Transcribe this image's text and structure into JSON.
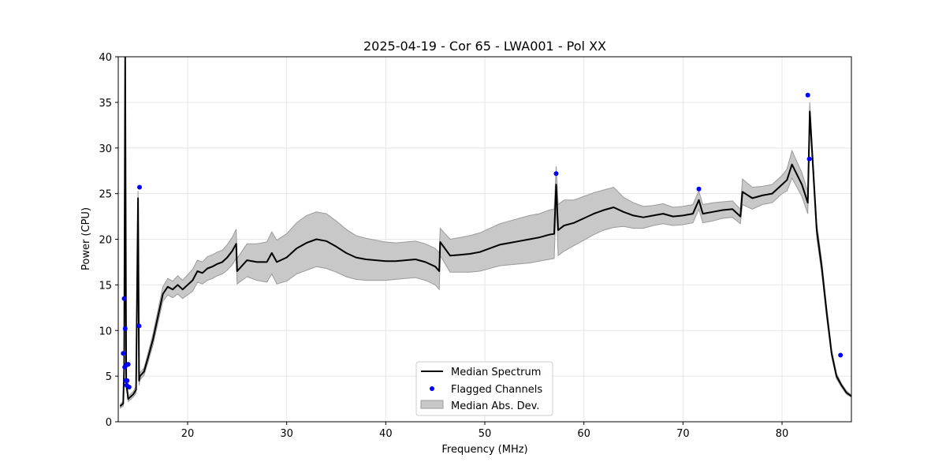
{
  "chart_data": {
    "type": "line",
    "title": "2025-04-19 - Cor 65 - LWA001 - Pol XX",
    "xlabel": "Frequency (MHz)",
    "ylabel": "Power (CPU)",
    "xlim": [
      13.0,
      87.0
    ],
    "ylim": [
      0,
      40
    ],
    "xticks": [
      20,
      30,
      40,
      50,
      60,
      70,
      80
    ],
    "yticks": [
      0,
      5,
      10,
      15,
      20,
      25,
      30,
      35,
      40
    ],
    "grid": true,
    "legend_position": "bottom-center",
    "colors": {
      "median": "#000000",
      "flagged": "#0000ff",
      "mad_fill": "#c8c8c8",
      "mad_edge": "#9a9a9a"
    },
    "series": [
      {
        "name": "Median Spectrum",
        "kind": "line",
        "x": [
          13.2,
          13.5,
          13.6,
          13.7,
          13.8,
          13.9,
          14.0,
          14.5,
          14.8,
          15.0,
          15.1,
          15.2,
          15.6,
          16.0,
          16.5,
          17.0,
          17.5,
          18.0,
          18.5,
          19.0,
          19.5,
          20.0,
          20.5,
          21.0,
          21.5,
          22.0,
          22.5,
          23.0,
          23.5,
          24.0,
          24.5,
          24.9,
          25.0,
          26.0,
          27.0,
          28.0,
          28.5,
          29.0,
          30.0,
          31.0,
          32.0,
          33.0,
          34.0,
          35.0,
          36.0,
          37.0,
          38.0,
          39.0,
          40.0,
          41.0,
          42.0,
          43.0,
          44.0,
          45.0,
          45.4,
          45.5,
          46.5,
          47.5,
          48.5,
          49.5,
          50.5,
          51.5,
          52.5,
          53.5,
          54.5,
          55.5,
          56.5,
          57.0,
          57.2,
          57.4,
          58.0,
          59.0,
          60.0,
          61.0,
          62.0,
          63.0,
          64.0,
          65.0,
          66.0,
          67.0,
          68.0,
          69.0,
          70.0,
          71.0,
          71.6,
          72.0,
          73.0,
          74.0,
          75.0,
          75.8,
          76.0,
          77.0,
          78.0,
          79.0,
          80.0,
          80.5,
          81.0,
          82.0,
          82.6,
          82.8,
          83.5,
          84.0,
          84.5,
          85.0,
          85.5,
          86.0,
          86.5,
          87.0
        ],
        "y": [
          1.7,
          2.0,
          6.0,
          40.0,
          4.0,
          3.5,
          2.5,
          3.0,
          3.5,
          24.5,
          4.5,
          5.0,
          5.5,
          7.0,
          9.0,
          11.5,
          14.0,
          14.8,
          14.5,
          15.0,
          14.5,
          15.0,
          15.5,
          16.5,
          16.3,
          16.8,
          17.0,
          17.3,
          17.5,
          18.0,
          18.7,
          19.5,
          16.5,
          17.7,
          17.5,
          17.5,
          18.5,
          17.5,
          18.0,
          19.0,
          19.6,
          20.0,
          19.8,
          19.2,
          18.5,
          18.0,
          17.8,
          17.7,
          17.6,
          17.6,
          17.7,
          17.8,
          17.5,
          17.0,
          16.5,
          19.7,
          18.2,
          18.3,
          18.4,
          18.6,
          19.0,
          19.4,
          19.6,
          19.8,
          20.0,
          20.2,
          20.5,
          20.6,
          26.0,
          21.0,
          21.5,
          21.8,
          22.3,
          22.8,
          23.2,
          23.5,
          23.0,
          22.6,
          22.4,
          22.6,
          22.8,
          22.5,
          22.6,
          22.8,
          24.3,
          22.8,
          23.0,
          23.2,
          23.3,
          22.5,
          25.2,
          24.5,
          24.8,
          25.0,
          26.0,
          26.5,
          28.2,
          26.0,
          24.0,
          34.0,
          21.0,
          17.0,
          12.0,
          7.5,
          5.0,
          4.0,
          3.2,
          2.8
        ],
        "mad": [
          0.2,
          0.3,
          0.8,
          1.0,
          0.5,
          0.4,
          0.3,
          0.3,
          0.4,
          0.8,
          0.5,
          0.4,
          0.4,
          0.5,
          0.6,
          0.7,
          0.8,
          0.9,
          0.9,
          1.0,
          1.0,
          1.1,
          1.2,
          1.2,
          1.2,
          1.3,
          1.3,
          1.3,
          1.3,
          1.4,
          1.5,
          1.6,
          1.4,
          1.8,
          2.0,
          2.2,
          2.3,
          2.4,
          2.6,
          2.8,
          3.0,
          3.0,
          3.0,
          2.8,
          2.6,
          2.4,
          2.3,
          2.2,
          2.1,
          2.0,
          2.0,
          2.0,
          2.0,
          2.0,
          2.0,
          1.5,
          1.8,
          1.9,
          2.0,
          2.1,
          2.2,
          2.3,
          2.4,
          2.5,
          2.6,
          2.6,
          2.7,
          2.7,
          2.0,
          2.8,
          2.8,
          2.5,
          2.4,
          2.3,
          2.2,
          2.2,
          1.6,
          1.4,
          1.2,
          1.1,
          1.1,
          1.0,
          1.0,
          1.0,
          1.0,
          1.0,
          1.0,
          0.9,
          0.9,
          0.8,
          1.4,
          1.2,
          1.0,
          1.0,
          1.0,
          1.2,
          1.5,
          1.3,
          1.2,
          1.0,
          0.8,
          0.7,
          0.6,
          0.4,
          0.3,
          0.2,
          0.2,
          0.1
        ]
      },
      {
        "name": "Flagged Channels",
        "kind": "scatter",
        "x": [
          13.5,
          13.6,
          13.65,
          13.7,
          13.75,
          13.8,
          13.85,
          13.9,
          14.0,
          14.1,
          15.1,
          15.15,
          57.2,
          71.6,
          82.6,
          82.75,
          85.9
        ],
        "y": [
          7.5,
          13.5,
          6.0,
          10.2,
          4.5,
          6.2,
          4.0,
          4.5,
          6.3,
          3.8,
          10.5,
          25.7,
          27.2,
          25.5,
          35.8,
          28.8,
          7.3
        ]
      },
      {
        "name": "Median Abs. Dev.",
        "kind": "band"
      }
    ]
  }
}
